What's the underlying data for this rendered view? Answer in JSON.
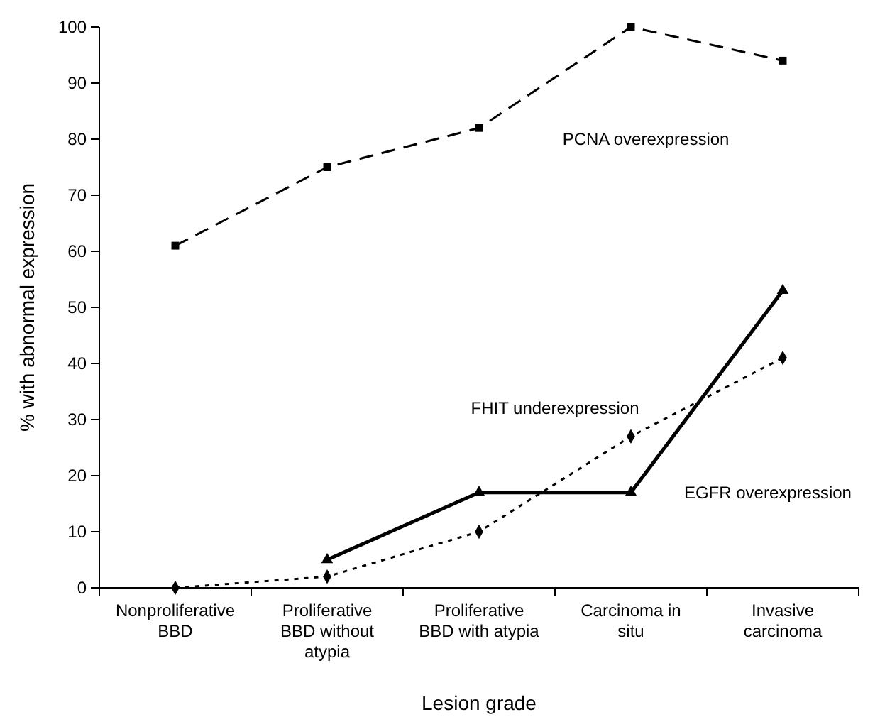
{
  "chart_data": {
    "type": "line",
    "xlabel": "Lesion grade",
    "ylabel": "% with abnormal expression",
    "categories": [
      "Nonproliferative BBD",
      "Proliferative BBD without atypia",
      "Proliferative BBD with atypia",
      "Carcinoma in situ",
      "Invasive carcinoma"
    ],
    "ylim": [
      0,
      100
    ],
    "yticks": [
      0,
      10,
      20,
      30,
      40,
      50,
      60,
      70,
      80,
      90,
      100
    ],
    "grid": false,
    "series": [
      {
        "name": "PCNA overexpression",
        "color": "#000000",
        "values": [
          61,
          75,
          82,
          100,
          94
        ],
        "marker": "square",
        "line_style": "dashed"
      },
      {
        "name": "FHIT underexpression",
        "color": "#000000",
        "values": [
          0,
          2,
          10,
          27,
          41
        ],
        "marker": "diamond",
        "line_style": "dotted"
      },
      {
        "name": "EGFR overexpression",
        "color": "#000000",
        "values": [
          null,
          5,
          17,
          17,
          53
        ],
        "marker": "triangle",
        "line_style": "solid"
      }
    ]
  }
}
